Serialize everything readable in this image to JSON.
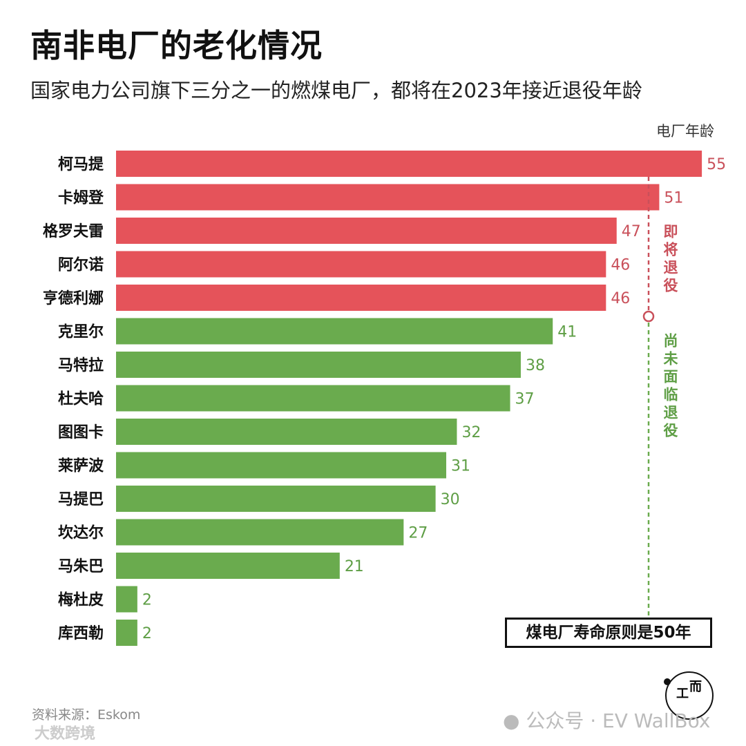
{
  "title": "南非电厂的老化情况",
  "subtitle": "国家电力公司旗下三分之一的燃煤电厂，都将在2023年接近退役年龄",
  "source": "资料来源：Eskom",
  "watermark_left": "大数跨境",
  "watermark_right": "公众号 · EV WallBox",
  "logo_text": "工而",
  "colors": {
    "retiring": "#e5535a",
    "retiring_text": "#c9505a",
    "not_retiring": "#6aab4e",
    "not_retiring_text": "#5e9e45"
  },
  "chart_data": {
    "type": "bar",
    "orientation": "horizontal",
    "xlabel": "电厂年龄",
    "xlim": [
      0,
      55
    ],
    "grid": false,
    "categories": [
      "柯马提",
      "卡姆登",
      "格罗夫雷",
      "阿尔诺",
      "亨德利娜",
      "克里尔",
      "马特拉",
      "杜夫哈",
      "图图卡",
      "莱萨波",
      "马提巴",
      "坎达尔",
      "马朱巴",
      "梅杜皮",
      "库西勒"
    ],
    "values": [
      55,
      51,
      47,
      46,
      46,
      41,
      38,
      37,
      32,
      31,
      30,
      27,
      21,
      2,
      2
    ],
    "groups": [
      "retiring",
      "retiring",
      "retiring",
      "retiring",
      "retiring",
      "not_retiring",
      "not_retiring",
      "not_retiring",
      "not_retiring",
      "not_retiring",
      "not_retiring",
      "not_retiring",
      "not_retiring",
      "not_retiring",
      "not_retiring"
    ],
    "reference_line": {
      "value": 50,
      "label": "煤电厂寿命原则是50年"
    },
    "annotations": {
      "retiring": "即将退役",
      "not_retiring": "尚未面临退役"
    }
  }
}
